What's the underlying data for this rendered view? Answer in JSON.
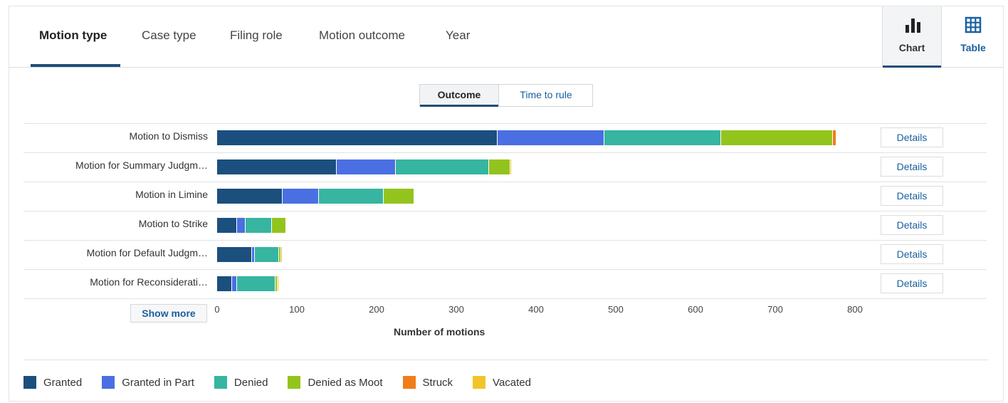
{
  "tabs": [
    {
      "label": "Motion type",
      "active": true
    },
    {
      "label": "Case type",
      "active": false
    },
    {
      "label": "Filing role",
      "active": false
    },
    {
      "label": "Motion outcome",
      "active": false
    },
    {
      "label": "Year",
      "active": false
    }
  ],
  "view_toggle": {
    "chart_label": "Chart",
    "table_label": "Table",
    "selected": "Chart"
  },
  "sub_toggle": {
    "outcome_label": "Outcome",
    "time_to_rule_label": "Time to rule",
    "selected": "Outcome"
  },
  "details_label": "Details",
  "show_more_label": "Show more",
  "colors": {
    "Granted": "#1b4f7d",
    "Granted in Part": "#4a6fe3",
    "Denied": "#36b5a0",
    "Denied as Moot": "#93c41e",
    "Struck": "#f07d1a",
    "Vacated": "#f2c42b",
    "accent": "#1f4e79",
    "link": "#1a5fa0"
  },
  "chart_data": {
    "type": "bar",
    "orientation": "horizontal",
    "stacked": true,
    "xlabel": "Number of motions",
    "xlim": [
      0,
      800
    ],
    "xticks": [
      0,
      100,
      200,
      300,
      400,
      500,
      600,
      700,
      800
    ],
    "legend_position": "bottom-left",
    "categories": [
      "Motion to Dismiss",
      "Motion for Summary Judgm…",
      "Motion in Limine",
      "Motion to Strike",
      "Motion for Default Judgm…",
      "Motion for Reconsiderati…"
    ],
    "series": [
      {
        "name": "Granted",
        "values": [
          352,
          150,
          82,
          25,
          44,
          19
        ]
      },
      {
        "name": "Granted in Part",
        "values": [
          134,
          74,
          46,
          11,
          3,
          6
        ]
      },
      {
        "name": "Denied",
        "values": [
          146,
          117,
          81,
          33,
          31,
          48
        ]
      },
      {
        "name": "Denied as Moot",
        "values": [
          140,
          27,
          38,
          18,
          2,
          3
        ]
      },
      {
        "name": "Struck",
        "values": [
          5,
          0,
          0,
          0,
          0,
          0
        ]
      },
      {
        "name": "Vacated",
        "values": [
          0,
          2,
          0,
          0,
          1,
          1
        ]
      }
    ]
  }
}
